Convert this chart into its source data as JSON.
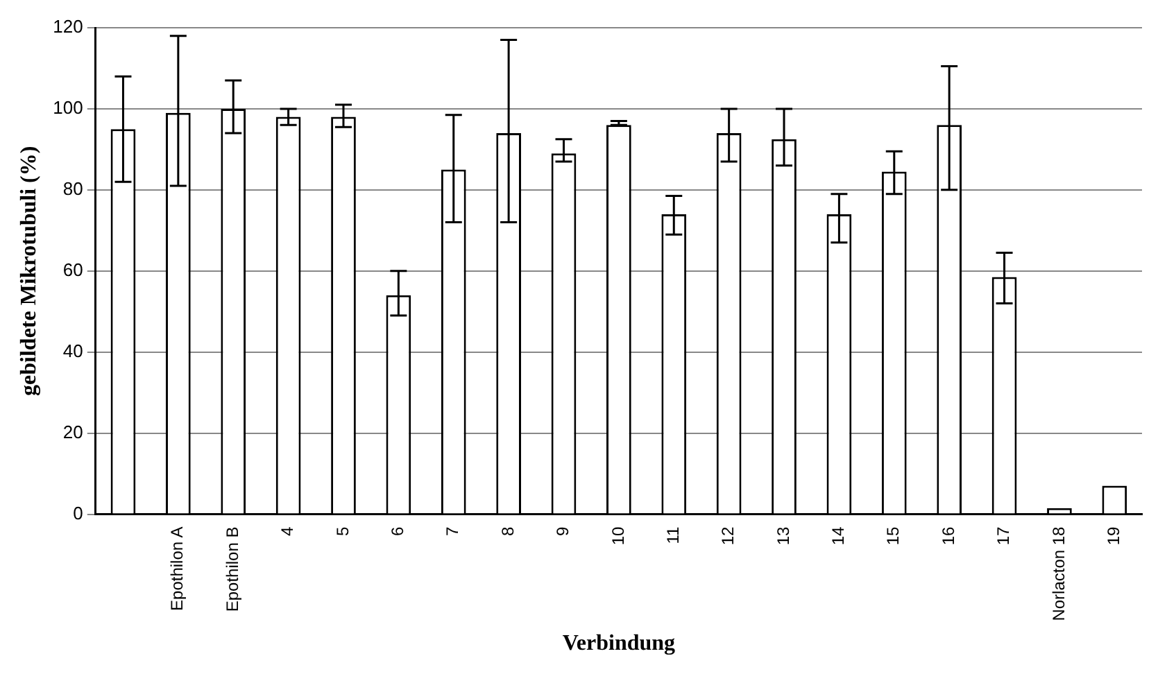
{
  "chart_data": {
    "type": "bar",
    "xlabel": "Verbindung",
    "ylabel": "gebildete Mikrotubuli (%)",
    "categories": [
      null,
      "Epothilon A",
      "Epothilon B",
      "4",
      "5",
      "6",
      "7",
      "8",
      "9",
      "10",
      "11",
      "12",
      "13",
      "14",
      "15",
      "16",
      "17",
      "Norlacton 18",
      "19"
    ],
    "values": [
      95,
      99,
      100,
      98,
      98,
      54,
      85,
      94,
      89,
      96,
      74,
      94,
      92.5,
      74,
      84.5,
      96,
      58.5,
      1.5,
      7
    ],
    "errors": [
      [
        82,
        108
      ],
      [
        81,
        118
      ],
      [
        94,
        107
      ],
      [
        96,
        100
      ],
      [
        95.5,
        101
      ],
      [
        49,
        60
      ],
      [
        72,
        98.5
      ],
      [
        72,
        117
      ],
      [
        87,
        92.5
      ],
      [
        96,
        97
      ],
      [
        69,
        78.5
      ],
      [
        87,
        100
      ],
      [
        86,
        100
      ],
      [
        67,
        79
      ],
      [
        79,
        89.5
      ],
      [
        80,
        110.5
      ],
      [
        52,
        64.5
      ],
      null,
      null
    ],
    "color": "#ffffff",
    "ylim": [
      0,
      120
    ],
    "yticks": [
      0,
      20,
      40,
      60,
      80,
      100,
      120
    ],
    "grid": "y"
  }
}
